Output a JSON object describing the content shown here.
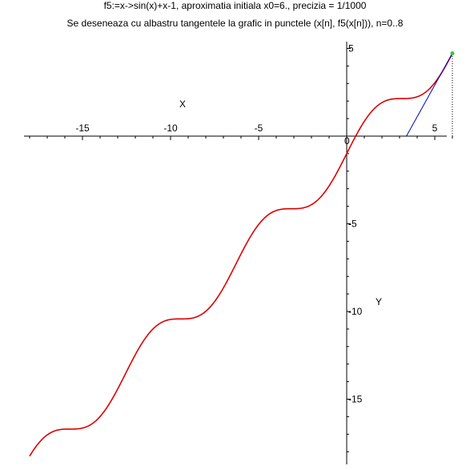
{
  "title_line1": "f5:=x->sin(x)+x-1, aproximatia initiala x0=6.,  precizia = 1/1000",
  "title_line2": "Se deseneaza cu albastru tangentele la grafic in punctele (x[n], f5(x[n])), n=0..8",
  "chart_data": {
    "type": "line",
    "title": "f5:=x->sin(x)+x-1, aproximatia initiala x0=6.,  precizia = 1/1000",
    "subtitle": "Se deseneaza cu albastru tangentele la grafic in punctele (x[n], f5(x[n])), n=0..8",
    "xlabel": "X",
    "ylabel": "Y",
    "xlim": [
      -18,
      6
    ],
    "ylim": [
      -18.5,
      5
    ],
    "xticks": [
      -15,
      -10,
      -5,
      0,
      5
    ],
    "yticks": [
      5,
      0,
      -5,
      -10,
      -15
    ],
    "xtick_labels": [
      "-15",
      "-10",
      "-5",
      "0",
      "5"
    ],
    "ytick_labels": [
      "5",
      "0",
      "-5",
      "-10",
      "-15"
    ],
    "function_expr": "sin(x)+x-1",
    "series": [
      {
        "name": "f5",
        "color": "#dd0000",
        "kind": "function",
        "x": [
          -18,
          -17.5,
          -17,
          -16.5,
          -16,
          -15.5,
          -15,
          -14.5,
          -14,
          -13.5,
          -13,
          -12.5,
          -12,
          -11.5,
          -11,
          -10.5,
          -10,
          -9.5,
          -9,
          -8.5,
          -8,
          -7.5,
          -7,
          -6.5,
          -6,
          -5.5,
          -5,
          -4.5,
          -4,
          -3.5,
          -3,
          -2.5,
          -2,
          -1.5,
          -1,
          -0.5,
          0,
          0.5,
          1,
          1.5,
          2,
          2.5,
          3,
          3.5,
          4,
          4.5,
          5,
          5.5,
          6
        ],
        "y": [
          -18.75,
          -17.52,
          -16.96,
          -17.21,
          -17.29,
          -16.3,
          -16.65,
          -16.57,
          -14.01,
          -14.7,
          -13.58,
          -13.43,
          -12.46,
          -11.62,
          -11.0,
          -11.38,
          -10.46,
          -10.42,
          -10.41,
          -9.7,
          -8.01,
          -7.56,
          -8.66,
          -7.28,
          -6.72,
          -5.79,
          -5.04,
          -4.52,
          -4.24,
          -4.15,
          -4.14,
          -2.9,
          -3.91,
          -3.5,
          -2.84,
          -1.98,
          -1.0,
          -0.02,
          0.84,
          1.5,
          1.91,
          2.1,
          2.14,
          2.15,
          2.24,
          2.52,
          3.04,
          3.79,
          4.72
        ]
      },
      {
        "name": "tangente",
        "color": "#0000cc",
        "kind": "segments",
        "segments": [
          {
            "x": [
              3.39,
              6.0
            ],
            "y": [
              0.0,
              4.72
            ]
          }
        ]
      }
    ],
    "highlight_point": {
      "x": 6.0,
      "y": 4.72,
      "color": "#33cc33"
    },
    "dotted_guide": {
      "x": [
        6.0,
        6.0
      ],
      "y": [
        0.0,
        4.72
      ]
    },
    "grid": false,
    "legend": "none"
  }
}
